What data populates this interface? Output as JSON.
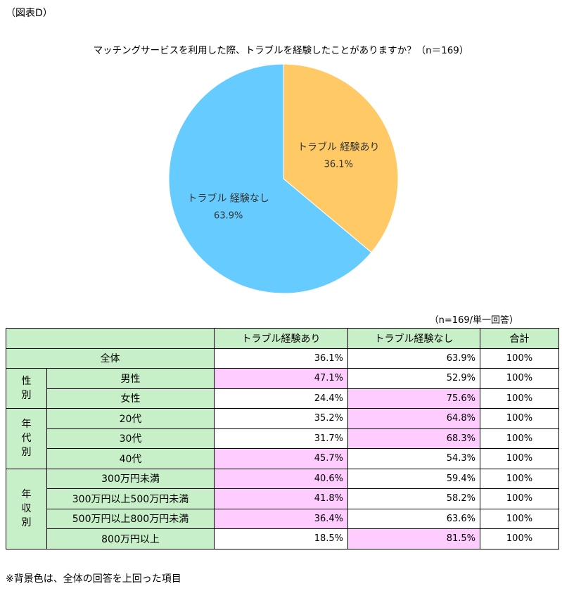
{
  "figure_label": "（図表D）",
  "chart_data": {
    "type": "pie",
    "title": "マッチングサービスを利用した際、トラブルを経験したことがありますか？（n＝169）",
    "slices": [
      {
        "label": "トラブル 経験あり",
        "value": 36.1,
        "display": "36.1%",
        "color": "#ffc966"
      },
      {
        "label": "トラブル 経験なし",
        "value": 63.9,
        "display": "63.9%",
        "color": "#66ccff"
      }
    ]
  },
  "table": {
    "note": "（n=169/単一回答）",
    "headers": [
      "トラブル経験あり",
      "トラブル経験なし",
      "合計"
    ],
    "overall": {
      "label": "全体",
      "values": [
        "36.1%",
        "63.9%",
        "100%"
      ]
    },
    "groups": [
      {
        "label": [
          "性",
          "別"
        ],
        "rows": [
          {
            "label": "男性",
            "values": [
              "47.1%",
              "52.9%",
              "100%"
            ],
            "highlight": [
              true,
              false
            ]
          },
          {
            "label": "女性",
            "values": [
              "24.4%",
              "75.6%",
              "100%"
            ],
            "highlight": [
              false,
              true
            ]
          }
        ]
      },
      {
        "label": [
          "年",
          "代",
          "別"
        ],
        "rows": [
          {
            "label": "20代",
            "values": [
              "35.2%",
              "64.8%",
              "100%"
            ],
            "highlight": [
              false,
              true
            ]
          },
          {
            "label": "30代",
            "values": [
              "31.7%",
              "68.3%",
              "100%"
            ],
            "highlight": [
              false,
              true
            ]
          },
          {
            "label": "40代",
            "values": [
              "45.7%",
              "54.3%",
              "100%"
            ],
            "highlight": [
              true,
              false
            ]
          }
        ]
      },
      {
        "label": [
          "年",
          "収",
          "別"
        ],
        "rows": [
          {
            "label": "300万円未満",
            "values": [
              "40.6%",
              "59.4%",
              "100%"
            ],
            "highlight": [
              true,
              false
            ]
          },
          {
            "label": "300万円以上500万円未満",
            "values": [
              "41.8%",
              "58.2%",
              "100%"
            ],
            "highlight": [
              true,
              false
            ]
          },
          {
            "label": "500万円以上800万円未満",
            "values": [
              "36.4%",
              "63.6%",
              "100%"
            ],
            "highlight": [
              true,
              false
            ]
          },
          {
            "label": "800万円以上",
            "values": [
              "18.5%",
              "81.5%",
              "100%"
            ],
            "highlight": [
              false,
              true
            ]
          }
        ]
      }
    ],
    "highlight_color": "#ffccff",
    "header_color": "#c8f0c8"
  },
  "footer_note": "※背景色は、全体の回答を上回った項目"
}
